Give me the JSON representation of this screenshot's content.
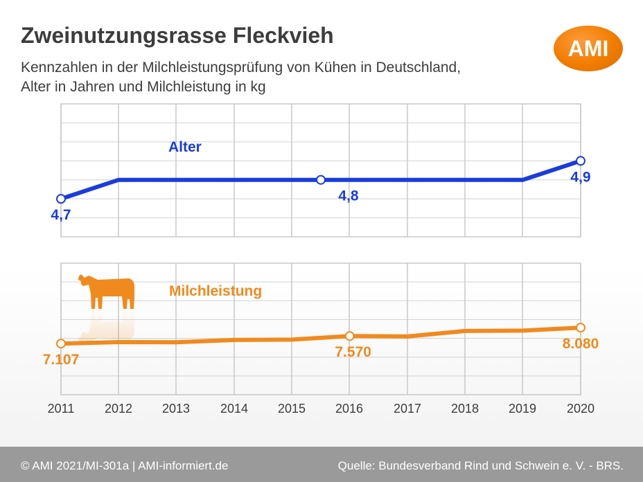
{
  "title": "Zweinutzungsrasse Fleckvieh",
  "subtitle_line1": "Kennzahlen in der Milchleistungsprüfung von Kühen in Deutschland,",
  "subtitle_line2": "Alter in Jahren und Milchleistung in kg",
  "logo_text": "AMI",
  "footer_left": "© AMI 2021/MI-301a | AMI-informiert.de",
  "footer_right": "Quelle: Bundesverband Rind und Schwein e. V. - BRS.",
  "colors": {
    "alter": "#1a3cdc",
    "milch": "#f08a1e",
    "logo": "#f07d00",
    "footer": "#9a9a9a"
  },
  "icons": {
    "cow": "cow-icon"
  },
  "chart_data": [
    {
      "type": "line",
      "series": [
        {
          "name": "Alter",
          "x": [
            2011,
            2012,
            2013,
            2014,
            2015,
            2016,
            2017,
            2018,
            2019,
            2020
          ],
          "values": [
            4.7,
            4.8,
            4.8,
            4.8,
            4.8,
            4.8,
            4.8,
            4.8,
            4.8,
            4.9
          ]
        }
      ],
      "labeled_points": [
        {
          "x": 2011,
          "label": "4,7"
        },
        {
          "x": 2015.5,
          "label": "4,8"
        },
        {
          "x": 2020,
          "label": "4,9"
        }
      ],
      "ylim": [
        4.5,
        5.2
      ],
      "grid": true
    },
    {
      "type": "line",
      "series": [
        {
          "name": "Milchleistung",
          "x": [
            2011,
            2012,
            2013,
            2014,
            2015,
            2016,
            2017,
            2018,
            2019,
            2020
          ],
          "values": [
            7107,
            7200,
            7190,
            7330,
            7350,
            7570,
            7540,
            7880,
            7900,
            8080
          ]
        }
      ],
      "labeled_points": [
        {
          "x": 2011,
          "label": "7.107"
        },
        {
          "x": 2016,
          "label": "7.570"
        },
        {
          "x": 2020,
          "label": "8.080"
        }
      ],
      "xticks": [
        "2011",
        "2012",
        "2013",
        "2014",
        "2015",
        "2016",
        "2017",
        "2018",
        "2019",
        "2020"
      ],
      "ylim": [
        4000,
        12000
      ],
      "grid": true
    }
  ]
}
